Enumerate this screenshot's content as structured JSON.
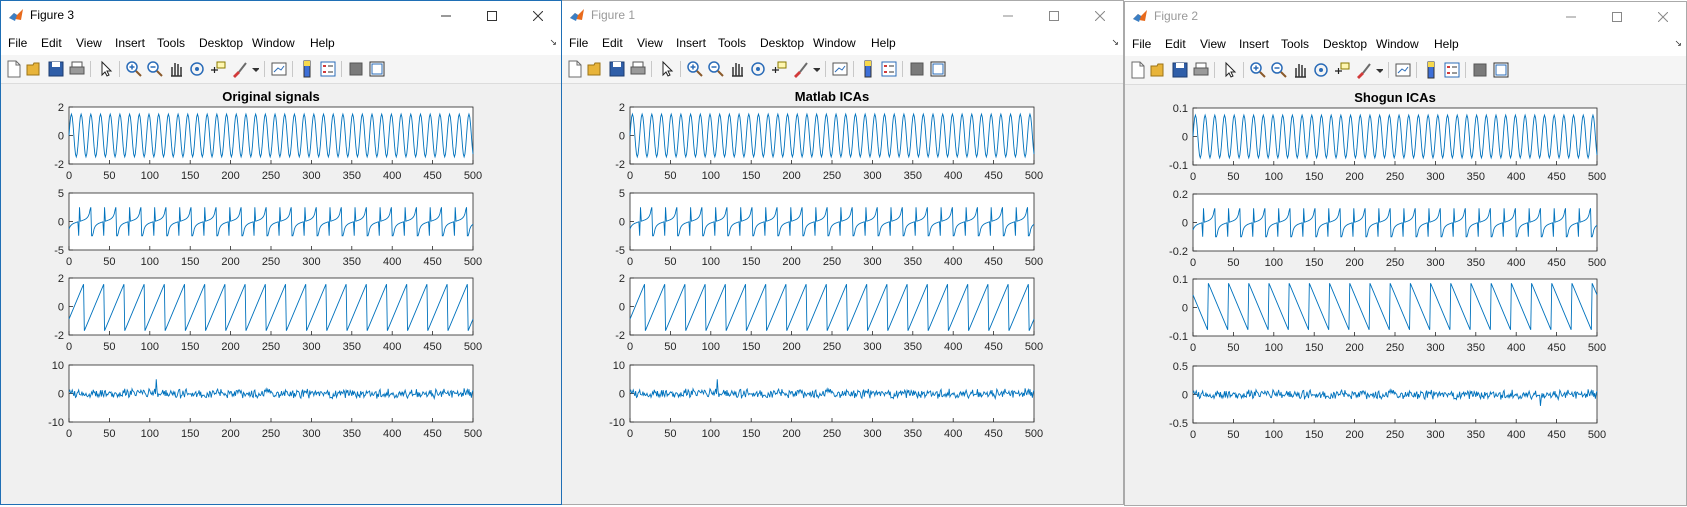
{
  "menus": [
    "File",
    "Edit",
    "View",
    "Insert",
    "Tools",
    "Desktop",
    "Window",
    "Help"
  ],
  "windows": [
    {
      "id": "fig3",
      "title": "Figure 3",
      "active": true,
      "chart_data": {
        "type": "line",
        "title": "Original signals",
        "subplots": [
          {
            "signal": "sine",
            "x_range": [
              0,
              500
            ],
            "ylim": [
              -2,
              2
            ],
            "yticks": [
              "-2",
              "0",
              "2"
            ],
            "amplitude": 1.5,
            "period": 12
          },
          {
            "signal": "spiky",
            "x_range": [
              0,
              500
            ],
            "ylim": [
              -5,
              5
            ],
            "yticks": [
              "-5",
              "0",
              "5"
            ],
            "amplitude": 2.5,
            "period": 31
          },
          {
            "signal": "sawtooth",
            "x_range": [
              0,
              500
            ],
            "ylim": [
              -2,
              2
            ],
            "yticks": [
              "-2",
              "0",
              "2"
            ],
            "amplitude": 1.7,
            "period": 25
          },
          {
            "signal": "noise",
            "x_range": [
              0,
              500
            ],
            "ylim": [
              -10,
              10
            ],
            "yticks": [
              "-10",
              "0",
              "10"
            ],
            "amplitude": 1.2,
            "spikes": [
              {
                "x": 108,
                "y": 5
              }
            ]
          }
        ],
        "xticks": [
          "0",
          "50",
          "100",
          "150",
          "200",
          "250",
          "300",
          "350",
          "400",
          "450",
          "500"
        ],
        "line_color": "#0072bd"
      }
    },
    {
      "id": "fig1",
      "title": "Figure 1",
      "active": false,
      "chart_data": {
        "type": "line",
        "title": "Matlab ICAs",
        "subplots": [
          {
            "signal": "sine",
            "x_range": [
              0,
              500
            ],
            "ylim": [
              -2,
              2
            ],
            "yticks": [
              "-2",
              "0",
              "2"
            ],
            "amplitude": 1.5,
            "period": 12
          },
          {
            "signal": "spiky",
            "x_range": [
              0,
              500
            ],
            "ylim": [
              -5,
              5
            ],
            "yticks": [
              "-5",
              "0",
              "5"
            ],
            "amplitude": 2.5,
            "period": 31
          },
          {
            "signal": "sawtooth",
            "x_range": [
              0,
              500
            ],
            "ylim": [
              -2,
              2
            ],
            "yticks": [
              "-2",
              "0",
              "2"
            ],
            "amplitude": 1.7,
            "period": 25
          },
          {
            "signal": "noise",
            "x_range": [
              0,
              500
            ],
            "ylim": [
              -10,
              10
            ],
            "yticks": [
              "-10",
              "0",
              "10"
            ],
            "amplitude": 1.2,
            "spikes": [
              {
                "x": 108,
                "y": 5
              }
            ]
          }
        ],
        "xticks": [
          "0",
          "50",
          "100",
          "150",
          "200",
          "250",
          "300",
          "350",
          "400",
          "450",
          "500"
        ],
        "line_color": "#0072bd"
      }
    },
    {
      "id": "fig2",
      "title": "Figure 2",
      "active": false,
      "chart_data": {
        "type": "line",
        "title": "Shogun ICAs",
        "subplots": [
          {
            "signal": "sine",
            "x_range": [
              0,
              500
            ],
            "ylim": [
              -0.1,
              0.1
            ],
            "yticks": [
              "-0.1",
              "0",
              "0.1"
            ],
            "amplitude": 0.075,
            "period": 12
          },
          {
            "signal": "spiky",
            "x_range": [
              0,
              500
            ],
            "ylim": [
              -0.2,
              0.2
            ],
            "yticks": [
              "-0.2",
              "0",
              "0.2"
            ],
            "amplitude": 0.1,
            "period": 31
          },
          {
            "signal": "sawtooth-inverted",
            "x_range": [
              0,
              500
            ],
            "ylim": [
              -0.1,
              0.1
            ],
            "yticks": [
              "-0.1",
              "0",
              "0.1"
            ],
            "amplitude": 0.085,
            "period": 25
          },
          {
            "signal": "noise",
            "x_range": [
              0,
              500
            ],
            "ylim": [
              -0.5,
              0.5
            ],
            "yticks": [
              "-0.5",
              "0",
              "0.5"
            ],
            "amplitude": 0.06,
            "spikes": [
              {
                "x": 430,
                "y": -0.2
              }
            ]
          }
        ],
        "xticks": [
          "0",
          "50",
          "100",
          "150",
          "200",
          "250",
          "300",
          "350",
          "400",
          "450",
          "500"
        ],
        "line_color": "#0072bd"
      }
    }
  ]
}
